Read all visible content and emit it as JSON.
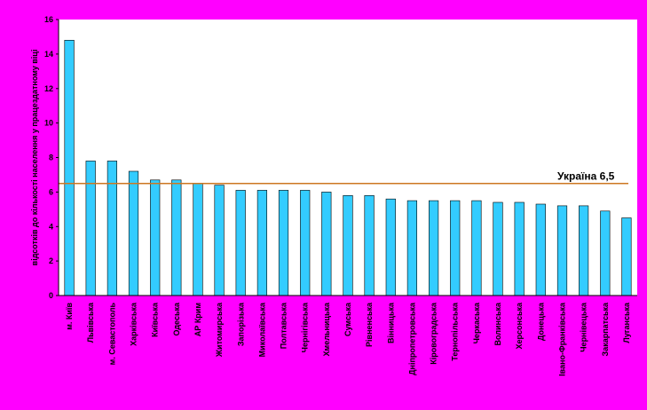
{
  "chart_data": {
    "type": "bar",
    "ylabel": "відсотків до кількості населення у працездатному віці",
    "ylim": [
      0,
      16
    ],
    "yticks": [
      "0",
      "2",
      "4",
      "6",
      "8",
      "10",
      "12",
      "14",
      "16"
    ],
    "grid": false,
    "categories": [
      "м. Київ",
      "Львівська",
      "м. Севастополь",
      "Харківська",
      "Київська",
      "Одеська",
      "АР Крим",
      "Житомирська",
      "Запорізька",
      "Миколаївська",
      "Полтавська",
      "Чернігівська",
      "Хмельницька",
      "Сумська",
      "Рівненська",
      "Вінницька",
      "Дніпропетровська",
      "Кіровоградська",
      "Тернопільська",
      "Черкаська",
      "Волинська",
      "Херсонська",
      "Донецька",
      "Івано-Франківська",
      "Чернівецька",
      "Закарпатська",
      "Луганська"
    ],
    "values": [
      14.8,
      7.8,
      7.8,
      7.2,
      6.7,
      6.7,
      6.5,
      6.4,
      6.1,
      6.1,
      6.1,
      6.1,
      6.0,
      5.8,
      5.8,
      5.6,
      5.5,
      5.5,
      5.5,
      5.5,
      5.4,
      5.4,
      5.3,
      5.2,
      5.2,
      4.9,
      4.5
    ],
    "reference_line": {
      "label": "Україна 6,5",
      "value": 6.5
    },
    "colors": {
      "background": "#ff00ff",
      "plot_area": "#ffffff",
      "bar": "#33ccff",
      "bar_edge": "#000000",
      "reference_line": "#cc7722"
    }
  }
}
